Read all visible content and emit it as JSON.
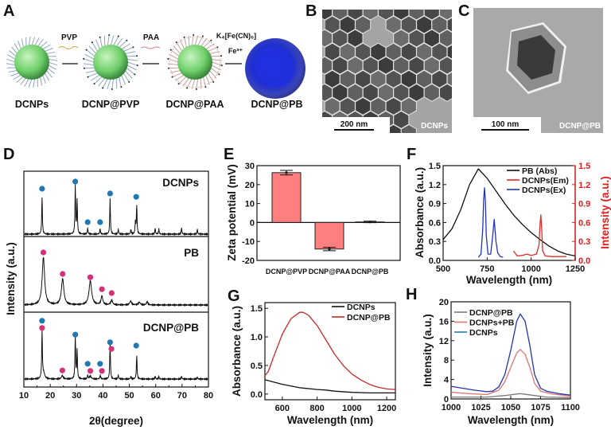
{
  "panels": {
    "A": {
      "label": "A",
      "steps": [
        "DCNPs",
        "DCNP@PVP",
        "DCNP@PAA",
        "DCNP@PB"
      ],
      "reagents": {
        "pvp": "PVP",
        "paa": "PAA",
        "ferrocyanide": "K₄[Fe(CN)₆]",
        "iron": "Fe³⁺"
      }
    },
    "B": {
      "label": "B",
      "scale_bar": "200 nm",
      "caption": "DCNPs"
    },
    "C": {
      "label": "C",
      "scale_bar": "100 nm",
      "caption": "DCNP@PB"
    }
  },
  "chart_data": [
    {
      "panel": "D",
      "type": "line",
      "xlabel": "2θ(degree)",
      "ylabel": "Intensity (a.u.)",
      "xlim": [
        10,
        80
      ],
      "xticks": [
        "10",
        "20",
        "30",
        "40",
        "50",
        "60",
        "70",
        "80"
      ],
      "marker_colors": {
        "DCNP": "#1f78b4",
        "PB": "#d6307a"
      },
      "subplots": [
        {
          "name": "DCNPs",
          "peaks": [
            [
              16.9,
              0.78,
              0.15
            ],
            [
              29.5,
              1.0,
              0.15
            ],
            [
              30.2,
              0.7,
              0.15
            ],
            [
              34.2,
              0.13,
              0.15
            ],
            [
              38.9,
              0.12,
              0.15
            ],
            [
              42.7,
              0.73,
              0.15
            ],
            [
              45.8,
              0.1,
              0.15
            ],
            [
              50.6,
              0.1,
              0.15
            ],
            [
              52.3,
              0.25,
              0.15
            ],
            [
              52.8,
              0.6,
              0.15
            ],
            [
              59.8,
              0.12,
              0.15
            ],
            [
              61.2,
              0.1,
              0.15
            ],
            [
              69.8,
              0.13,
              0.15
            ],
            [
              75.8,
              0.1,
              0.15
            ]
          ],
          "markers": [
            {
              "x": 16.9,
              "y": 0.95,
              "phase": "DCNP"
            },
            {
              "x": 29.5,
              "y": 1.1,
              "phase": "DCNP"
            },
            {
              "x": 34.2,
              "y": 0.25,
              "phase": "DCNP"
            },
            {
              "x": 38.9,
              "y": 0.25,
              "phase": "DCNP"
            },
            {
              "x": 42.7,
              "y": 0.85,
              "phase": "DCNP"
            },
            {
              "x": 52.6,
              "y": 0.78,
              "phase": "DCNP"
            }
          ]
        },
        {
          "name": "PB",
          "peaks": [
            [
              17.4,
              1.0,
              0.55
            ],
            [
              24.7,
              0.55,
              0.55
            ],
            [
              35.2,
              0.5,
              0.6
            ],
            [
              39.6,
              0.18,
              0.4
            ],
            [
              43.3,
              0.1,
              0.4
            ],
            [
              50.5,
              0.08,
              0.4
            ],
            [
              53.8,
              0.06,
              0.4
            ],
            [
              56.8,
              0.07,
              0.3
            ]
          ],
          "markers": [
            {
              "x": 17.4,
              "y": 1.1,
              "phase": "PB"
            },
            {
              "x": 24.7,
              "y": 0.65,
              "phase": "PB"
            },
            {
              "x": 35.2,
              "y": 0.58,
              "phase": "PB"
            },
            {
              "x": 39.6,
              "y": 0.33,
              "phase": "PB"
            },
            {
              "x": 43.3,
              "y": 0.25,
              "phase": "PB"
            }
          ]
        },
        {
          "name": "DCNP@PB",
          "peaks": [
            [
              16.9,
              1.0,
              0.15
            ],
            [
              17.5,
              0.12,
              0.5
            ],
            [
              24.6,
              0.07,
              0.4
            ],
            [
              29.5,
              0.9,
              0.15
            ],
            [
              30.2,
              0.6,
              0.15
            ],
            [
              34.2,
              0.08,
              0.15
            ],
            [
              35.2,
              0.06,
              0.4
            ],
            [
              39.0,
              0.07,
              0.2
            ],
            [
              42.7,
              0.78,
              0.15
            ],
            [
              45.8,
              0.08,
              0.15
            ],
            [
              50.6,
              0.06,
              0.15
            ],
            [
              52.8,
              0.5,
              0.15
            ],
            [
              59.8,
              0.06,
              0.15
            ],
            [
              61.2,
              0.05,
              0.15
            ],
            [
              69.8,
              0.06,
              0.15
            ],
            [
              75.8,
              0.04,
              0.15
            ]
          ],
          "markers": [
            {
              "x": 16.9,
              "y": 1.22,
              "phase": "DCNP"
            },
            {
              "x": 16.9,
              "y": 1.07,
              "phase": "PB"
            },
            {
              "x": 24.6,
              "y": 0.18,
              "phase": "PB"
            },
            {
              "x": 29.5,
              "y": 0.93,
              "phase": "DCNP"
            },
            {
              "x": 34.2,
              "y": 0.32,
              "phase": "DCNP"
            },
            {
              "x": 35.2,
              "y": 0.17,
              "phase": "PB"
            },
            {
              "x": 38.9,
              "y": 0.32,
              "phase": "DCNP"
            },
            {
              "x": 39.6,
              "y": 0.17,
              "phase": "PB"
            },
            {
              "x": 42.7,
              "y": 0.77,
              "phase": "DCNP"
            },
            {
              "x": 43.2,
              "y": 0.63,
              "phase": "PB"
            },
            {
              "x": 52.6,
              "y": 0.7,
              "phase": "DCNP"
            }
          ]
        }
      ]
    },
    {
      "panel": "E",
      "type": "bar",
      "ylabel": "Zeta potential (mV)",
      "categories": [
        "DCNP@PVP",
        "DCNP@PAA",
        "DCNP@PB"
      ],
      "values": [
        26.3,
        -14.0,
        0.3
      ],
      "errors": [
        1.2,
        0.9,
        0.4
      ],
      "ylim": [
        -20,
        30
      ],
      "yticks": [
        "-20",
        "-10",
        "0",
        "10",
        "20",
        "30"
      ],
      "bar_color": "#ff7f7f"
    },
    {
      "panel": "F",
      "type": "line",
      "xlabel": "Wavelength (nm)",
      "ylabel": "Absorbance (a.u.)",
      "ylabel_right": "Intensity (a.u.)",
      "xlim": [
        500,
        1250
      ],
      "xticks": [
        "500",
        "750",
        "1000",
        "1250"
      ],
      "ylim": [
        0,
        1.5
      ],
      "yticks": [
        "0.0",
        "0.3",
        "0.6",
        "0.9",
        "1.2",
        "1.5"
      ],
      "ylim_right": [
        0,
        1.5
      ],
      "yticks_right": [
        "0.0",
        "0.3",
        "0.6",
        "0.9",
        "1.2",
        "1.5"
      ],
      "right_axis_color": "#e01e1e",
      "series": [
        {
          "name": "PB (Abs)",
          "color": "#111111",
          "axis": "left",
          "x": [
            500,
            550,
            600,
            650,
            700,
            750,
            800,
            850,
            900,
            950,
            1000,
            1050,
            1100,
            1150,
            1200,
            1250
          ],
          "y": [
            0.33,
            0.5,
            0.8,
            1.2,
            1.45,
            1.3,
            1.1,
            0.9,
            0.72,
            0.57,
            0.44,
            0.33,
            0.23,
            0.15,
            0.1,
            0.07
          ]
        },
        {
          "name": "DCNPs(Em)",
          "color": "#e02a2a",
          "axis": "right",
          "x": [
            900,
            920,
            950,
            975,
            1000,
            1030,
            1045,
            1050,
            1055,
            1060,
            1065,
            1080,
            1120,
            1200
          ],
          "y": [
            0.15,
            0.07,
            0.08,
            0.1,
            0.08,
            0.1,
            0.25,
            0.55,
            0.72,
            0.5,
            0.15,
            0.07,
            0.06,
            0.06
          ]
        },
        {
          "name": "DCNPs(Ex)",
          "color": "#2233bb",
          "axis": "left",
          "x": [
            700,
            715,
            725,
            730,
            735,
            740,
            745,
            755,
            770,
            780,
            790,
            800,
            810,
            825,
            840
          ],
          "y": [
            0.05,
            0.1,
            0.5,
            0.95,
            1.15,
            0.95,
            0.4,
            0.1,
            0.1,
            0.35,
            0.65,
            0.3,
            0.12,
            0.06,
            0.05
          ]
        }
      ]
    },
    {
      "panel": "G",
      "type": "line",
      "xlabel": "Wavelength (nm)",
      "ylabel": "Absorbance (a.u.)",
      "xlim": [
        500,
        1250
      ],
      "xticks": [
        "600",
        "800",
        "1000",
        "1200"
      ],
      "xtick_values": [
        600,
        800,
        1000,
        1200
      ],
      "ylim": [
        -0.1,
        1.6
      ],
      "yticks": [
        "0.0",
        "0.5",
        "1.0",
        "1.5"
      ],
      "ytick_values": [
        0,
        0.5,
        1.0,
        1.5
      ],
      "series": [
        {
          "name": "DCNPs",
          "color": "#111111",
          "x": [
            500,
            600,
            700,
            800,
            850,
            900,
            1000,
            1100,
            1250
          ],
          "y": [
            0.25,
            0.17,
            0.11,
            0.08,
            0.07,
            0.05,
            0.03,
            0.02,
            0.02
          ]
        },
        {
          "name": "DCNP@PB",
          "color": "#c8282c",
          "x": [
            500,
            520,
            550,
            600,
            650,
            700,
            720,
            750,
            800,
            850,
            900,
            950,
            1000,
            1050,
            1100,
            1150,
            1200,
            1250
          ],
          "y": [
            0.32,
            0.4,
            0.65,
            1.05,
            1.32,
            1.43,
            1.43,
            1.38,
            1.2,
            0.95,
            0.7,
            0.5,
            0.35,
            0.25,
            0.17,
            0.12,
            0.09,
            0.08
          ]
        }
      ]
    },
    {
      "panel": "H",
      "type": "line",
      "xlabel": "Wavelength (nm)",
      "ylabel": "Intensity (a.u.)",
      "xlim": [
        1000,
        1100
      ],
      "xticks": [
        "1000",
        "1025",
        "1050",
        "1075",
        "1100"
      ],
      "xtick_values": [
        1000,
        1025,
        1050,
        1075,
        1100
      ],
      "ylim": [
        0,
        20
      ],
      "yticks": [
        "0",
        "4",
        "8",
        "12",
        "16",
        "20"
      ],
      "ytick_values": [
        0,
        4,
        8,
        12,
        16,
        20
      ],
      "series": [
        {
          "name": "DCNP@PB",
          "color": "#7a7a7a",
          "x": [
            1000,
            1030,
            1045,
            1058,
            1070,
            1080,
            1100
          ],
          "y": [
            0.4,
            0.4,
            0.7,
            1.1,
            0.7,
            0.4,
            0.3
          ]
        },
        {
          "name": "DCNPs+PB",
          "color": "#e07272",
          "x": [
            1000,
            1015,
            1030,
            1040,
            1045,
            1050,
            1055,
            1058,
            1062,
            1066,
            1070,
            1075,
            1085,
            1100
          ],
          "y": [
            1.4,
            1.1,
            0.9,
            1.8,
            3.5,
            6.5,
            9.5,
            10.2,
            9.2,
            6.5,
            3.2,
            1.6,
            1.0,
            0.6
          ]
        },
        {
          "name": "DCNPs",
          "color": "#2233b0",
          "legend_color": "#2f7fae",
          "x": [
            1000,
            1010,
            1020,
            1030,
            1035,
            1040,
            1045,
            1050,
            1055,
            1058,
            1062,
            1066,
            1070,
            1075,
            1080,
            1090,
            1100
          ],
          "y": [
            2.6,
            2.2,
            1.8,
            1.5,
            1.6,
            2.5,
            5,
            10,
            16,
            17.5,
            16,
            11,
            5,
            2.2,
            1.6,
            1.1,
            0.8
          ]
        }
      ]
    }
  ]
}
